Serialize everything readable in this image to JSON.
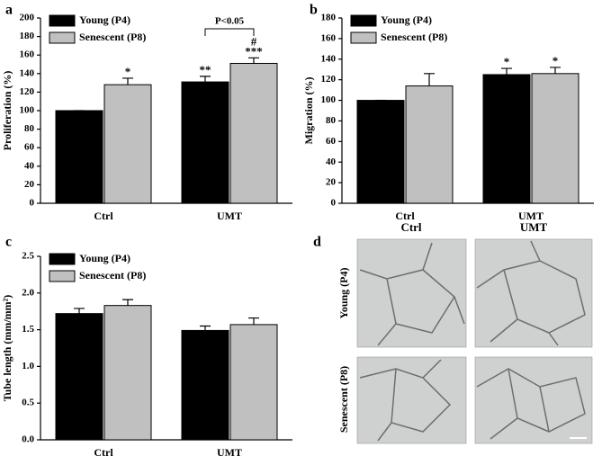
{
  "chart_data": [
    {
      "type": "bar",
      "panel": "a",
      "ylabel": "Proliferation (%)",
      "categories": [
        "Ctrl",
        "UMT"
      ],
      "ylim": [
        0,
        200
      ],
      "yticks": [
        0,
        20,
        40,
        60,
        80,
        100,
        120,
        140,
        160,
        180,
        200
      ],
      "bracket_label": "P<0.05",
      "series": [
        {
          "name": "Young (P4)",
          "color": "#000000",
          "values": [
            100,
            131
          ],
          "errors": [
            0,
            6
          ],
          "labels": [
            null,
            "**"
          ]
        },
        {
          "name": "Senescent (P8)",
          "color": "#c0c0c0",
          "values": [
            128,
            151
          ],
          "errors": [
            7,
            6
          ],
          "labels": [
            "*",
            [
              "#",
              "***"
            ]
          ]
        }
      ]
    },
    {
      "type": "bar",
      "panel": "b",
      "ylabel": "Migration (%)",
      "categories": [
        "Ctrl",
        "UMT"
      ],
      "ylim": [
        0,
        180
      ],
      "yticks": [
        0,
        20,
        40,
        60,
        80,
        100,
        120,
        140,
        160,
        180
      ],
      "series": [
        {
          "name": "Young (P4)",
          "color": "#000000",
          "values": [
            100,
            125
          ],
          "errors": [
            0,
            6
          ],
          "labels": [
            null,
            "*"
          ]
        },
        {
          "name": "Senescent (P8)",
          "color": "#c0c0c0",
          "values": [
            114,
            126
          ],
          "errors": [
            12,
            6
          ],
          "labels": [
            null,
            "*"
          ]
        }
      ]
    },
    {
      "type": "bar",
      "panel": "c",
      "ylabel": "Tube length (mm/mm²)",
      "categories": [
        "Ctrl",
        "UMT"
      ],
      "ylim": [
        0,
        2.5
      ],
      "yticks": [
        {
          "value": 0,
          "label": "0.0"
        },
        0.5,
        {
          "value": 1,
          "label": "1.0"
        },
        1.5,
        {
          "value": 2,
          "label": "2.0"
        },
        2.5
      ],
      "series": [
        {
          "name": "Young (P4)",
          "color": "#000000",
          "values": [
            1.72,
            1.49
          ],
          "errors": [
            0.07,
            0.06
          ]
        },
        {
          "name": "Senescent (P8)",
          "color": "#c0c0c0",
          "values": [
            1.83,
            1.57
          ],
          "errors": [
            0.08,
            0.09
          ]
        }
      ]
    }
  ],
  "panel_d": {
    "label": "d",
    "columns": [
      "Ctrl",
      "UMT"
    ],
    "rows": [
      "Young (P4)",
      "Senescent (P8)"
    ]
  }
}
